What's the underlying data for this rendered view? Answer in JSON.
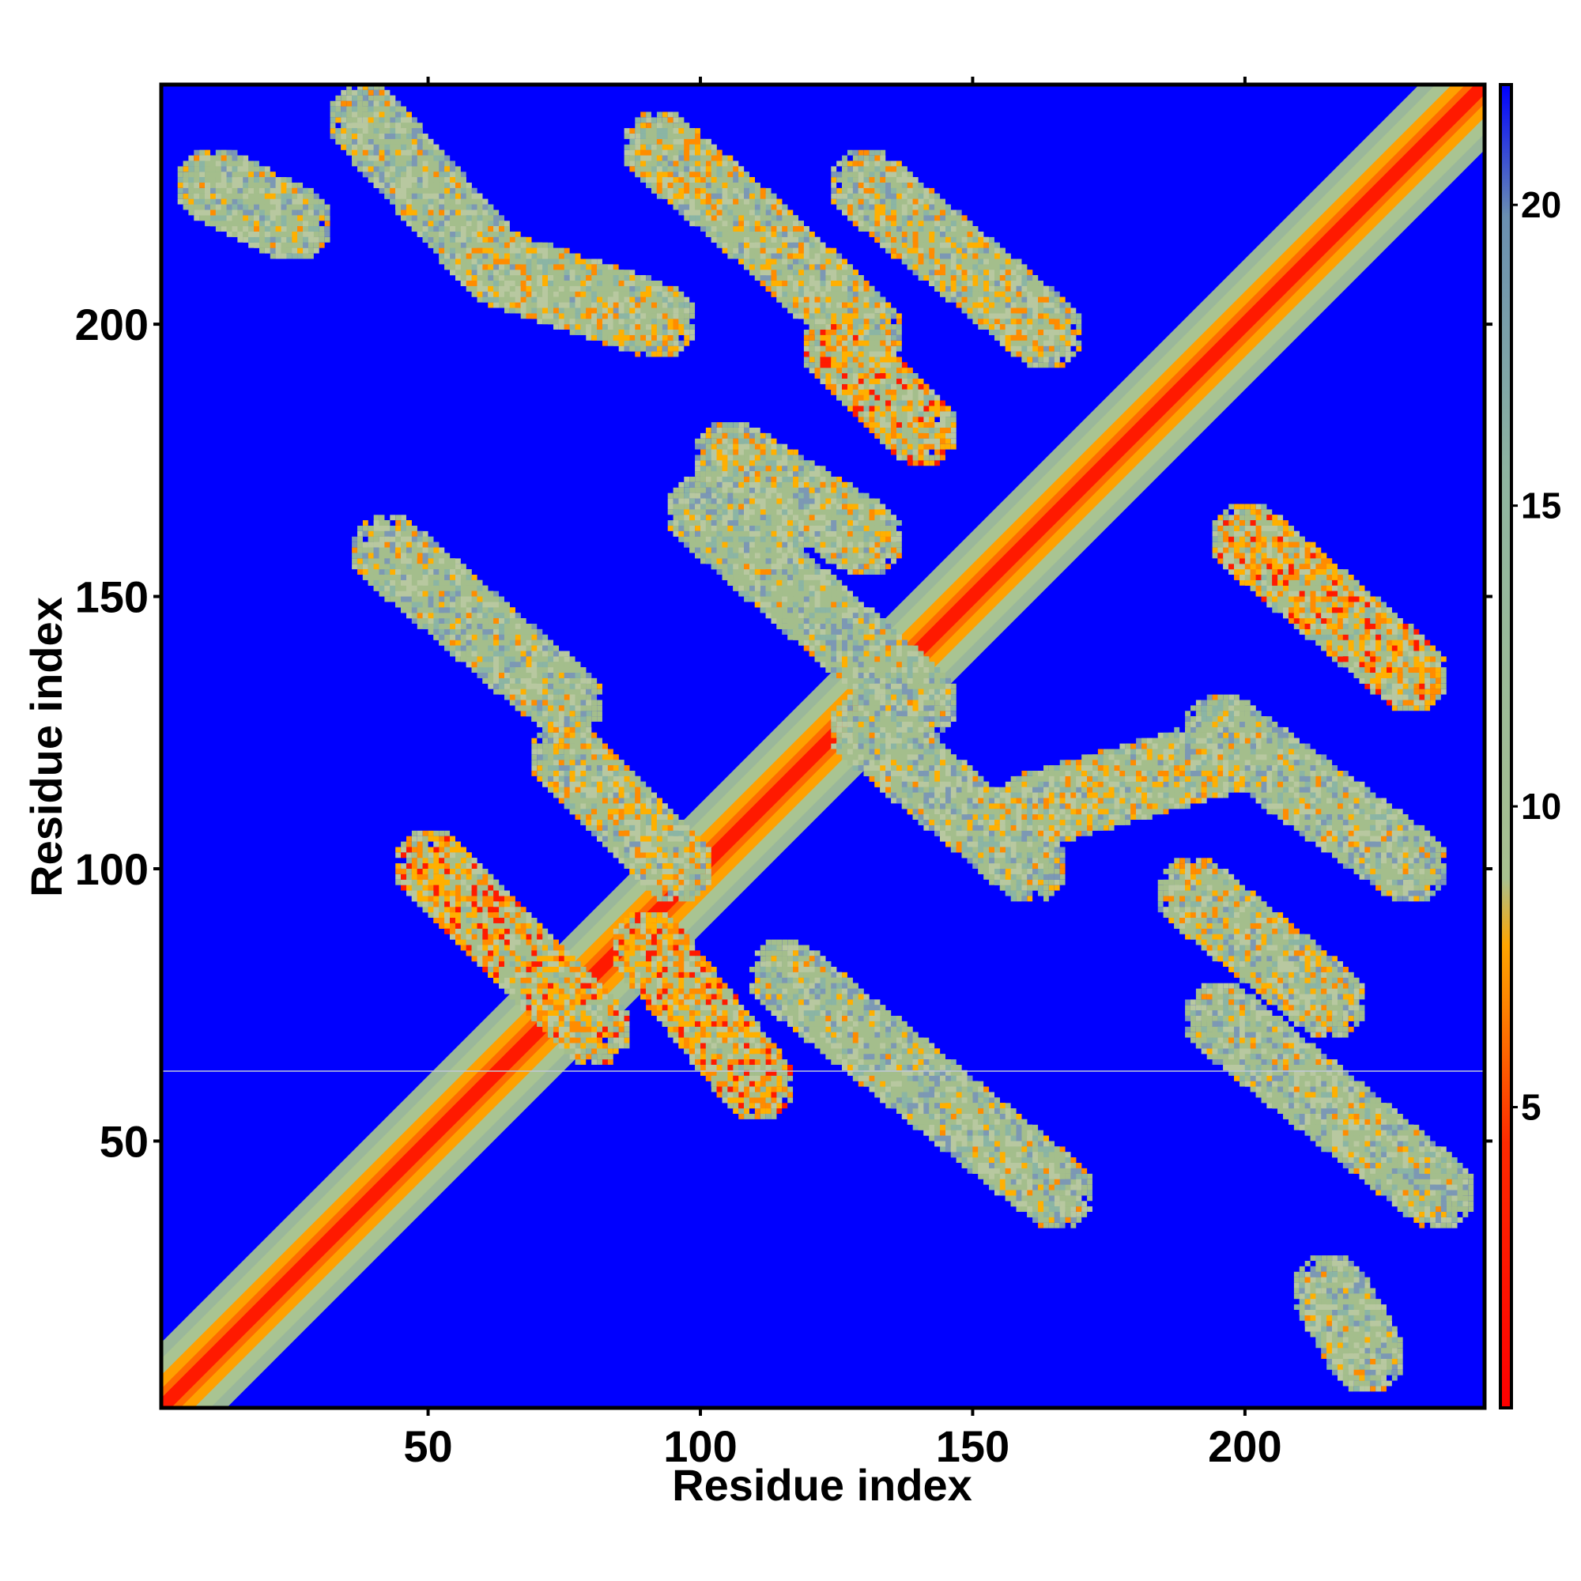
{
  "chart_data": {
    "type": "heatmap",
    "title": "",
    "xlabel": "Residue index",
    "ylabel": "Residue index",
    "xlim": [
      1,
      244
    ],
    "ylim": [
      1,
      244
    ],
    "x_ticks": [
      50,
      100,
      150,
      200
    ],
    "y_ticks": [
      50,
      100,
      150,
      200
    ],
    "x_tick_labels": [
      "50",
      "100",
      "150",
      "200"
    ],
    "y_tick_labels": [
      "50",
      "100",
      "150",
      "200"
    ],
    "colorbar": {
      "range": [
        0,
        22
      ],
      "ticks": [
        5,
        10,
        15,
        20
      ],
      "tick_labels": [
        "5",
        "10",
        "15",
        "20"
      ],
      "colors": [
        {
          "stop": 0.0,
          "color": "#ff0000"
        },
        {
          "stop": 0.2,
          "color": "#ff2a00"
        },
        {
          "stop": 0.3,
          "color": "#ff8000"
        },
        {
          "stop": 0.35,
          "color": "#ffa500"
        },
        {
          "stop": 0.4,
          "color": "#a8c090"
        },
        {
          "stop": 0.7,
          "color": "#8fb5a0"
        },
        {
          "stop": 0.9,
          "color": "#6a8fb0"
        },
        {
          "stop": 1.0,
          "color": "#0000ff"
        }
      ]
    },
    "background_color": "#0000ff",
    "description_of_values": "pairwise residue distance map; low distances along the main diagonal",
    "diagonal": {
      "from": 1,
      "to": 244
    },
    "contact_bands": [
      {
        "x": [
          38,
          62
        ],
        "y": [
          237,
          210
        ],
        "level": "low"
      },
      {
        "x": [
          62,
          92
        ],
        "y": [
          210,
          200
        ],
        "level": "mid"
      },
      {
        "x": [
          92,
          112
        ],
        "y": [
          232,
          215
        ],
        "level": "mid"
      },
      {
        "x": [
          112,
          130
        ],
        "y": [
          215,
          198
        ],
        "level": "mid"
      },
      {
        "x": [
          130,
          163
        ],
        "y": [
          225,
          198
        ],
        "level": "mid"
      },
      {
        "x": [
          125,
          140
        ],
        "y": [
          195,
          180
        ],
        "level": "high"
      },
      {
        "x": [
          105,
          130
        ],
        "y": [
          175,
          160
        ],
        "level": "mid"
      },
      {
        "x": [
          42,
          75
        ],
        "y": [
          158,
          130
        ],
        "level": "low"
      },
      {
        "x": [
          75,
          95
        ],
        "y": [
          120,
          100
        ],
        "level": "mid"
      },
      {
        "x": [
          100,
          140
        ],
        "y": [
          165,
          130
        ],
        "level": "low"
      },
      {
        "x": [
          130,
          160
        ],
        "y": [
          125,
          100
        ],
        "level": "low"
      },
      {
        "x": [
          160,
          195
        ],
        "y": [
          110,
          120
        ],
        "level": "mid"
      },
      {
        "x": [
          195,
          230
        ],
        "y": [
          125,
          100
        ],
        "level": "low"
      },
      {
        "x": [
          200,
          230
        ],
        "y": [
          160,
          135
        ],
        "level": "high"
      },
      {
        "x": [
          190,
          215
        ],
        "y": [
          95,
          75
        ],
        "level": "mid"
      },
      {
        "x": [
          195,
          235
        ],
        "y": [
          72,
          40
        ],
        "level": "low"
      },
      {
        "x": [
          115,
          165
        ],
        "y": [
          80,
          40
        ],
        "level": "low"
      },
      {
        "x": [
          90,
          110
        ],
        "y": [
          85,
          60
        ],
        "level": "high"
      },
      {
        "x": [
          50,
          80
        ],
        "y": [
          100,
          70
        ],
        "level": "high"
      },
      {
        "x": [
          10,
          25
        ],
        "y": [
          225,
          218
        ],
        "level": "low"
      },
      {
        "x": [
          215,
          222
        ],
        "y": [
          22,
          10
        ],
        "level": "low"
      }
    ],
    "grid": false,
    "legend": "colorbar-right"
  }
}
